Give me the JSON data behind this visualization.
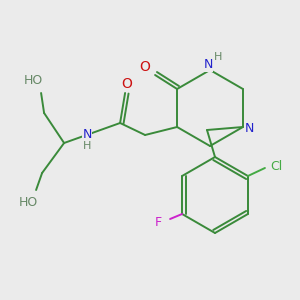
{
  "background_color": "#ebebeb",
  "bond_color": "#3a8a3a",
  "N_col": "#2222cc",
  "O_col": "#cc1111",
  "Cl_col": "#44aa44",
  "F_col": "#cc22cc",
  "H_col": "#668866",
  "fig_size": [
    3.0,
    3.0
  ],
  "dpi": 100,
  "xlim": [
    0,
    300
  ],
  "ylim": [
    0,
    300
  ]
}
